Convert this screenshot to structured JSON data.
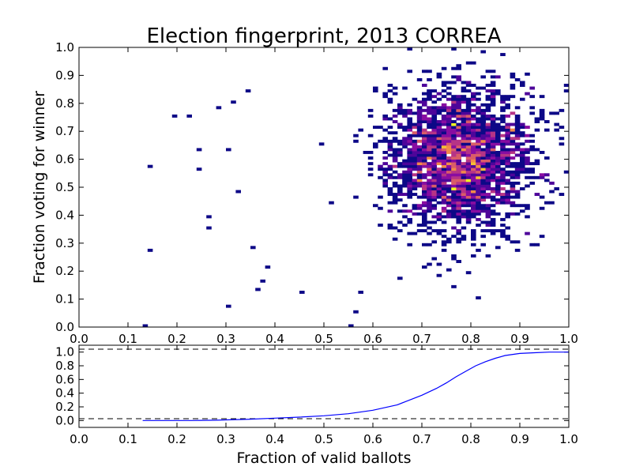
{
  "chart_data": [
    {
      "type": "heatmap",
      "title": "Election fingerprint, 2013 CORREA",
      "xlabel": "",
      "ylabel": "Fraction voting for winner",
      "xlim": [
        0.0,
        1.0
      ],
      "ylim": [
        0.0,
        1.0
      ],
      "x_ticks": [
        "0.0",
        "0.1",
        "0.2",
        "0.3",
        "0.4",
        "0.5",
        "0.6",
        "0.7",
        "0.8",
        "0.9",
        "1.0"
      ],
      "y_ticks": [
        "0.0",
        "0.1",
        "0.2",
        "0.3",
        "0.4",
        "0.5",
        "0.6",
        "0.7",
        "0.8",
        "0.9",
        "1.0"
      ],
      "bins": 100,
      "colormap": "plasma",
      "density_peak": {
        "x": 0.78,
        "y": 0.6
      },
      "density_spread": {
        "x": 0.075,
        "y": 0.13
      },
      "outlier_points": [
        {
          "x": 0.13,
          "y": 0.0
        },
        {
          "x": 0.14,
          "y": 0.58
        },
        {
          "x": 0.14,
          "y": 0.27
        },
        {
          "x": 0.19,
          "y": 0.75
        },
        {
          "x": 0.22,
          "y": 0.75
        },
        {
          "x": 0.24,
          "y": 0.63
        },
        {
          "x": 0.24,
          "y": 0.56
        },
        {
          "x": 0.26,
          "y": 0.35
        },
        {
          "x": 0.26,
          "y": 0.39
        },
        {
          "x": 0.28,
          "y": 0.78
        },
        {
          "x": 0.3,
          "y": 0.07
        },
        {
          "x": 0.3,
          "y": 0.63
        },
        {
          "x": 0.31,
          "y": 0.8
        },
        {
          "x": 0.32,
          "y": 0.48
        },
        {
          "x": 0.34,
          "y": 0.84
        },
        {
          "x": 0.35,
          "y": 0.29
        },
        {
          "x": 0.36,
          "y": 0.13
        },
        {
          "x": 0.37,
          "y": 0.16
        },
        {
          "x": 0.38,
          "y": 0.21
        },
        {
          "x": 0.45,
          "y": 0.12
        },
        {
          "x": 0.55,
          "y": 0.0
        },
        {
          "x": 0.56,
          "y": 0.05
        },
        {
          "x": 0.58,
          "y": 0.12
        },
        {
          "x": 0.67,
          "y": 0.99
        },
        {
          "x": 0.76,
          "y": 0.99
        },
        {
          "x": 0.99,
          "y": 0.86
        }
      ]
    },
    {
      "type": "line",
      "xlabel": "Fraction of valid ballots",
      "ylabel": "",
      "xlim": [
        0.0,
        1.0
      ],
      "ylim": [
        -0.1,
        1.1
      ],
      "x_ticks": [
        "0.0",
        "0.1",
        "0.2",
        "0.3",
        "0.4",
        "0.5",
        "0.6",
        "0.7",
        "0.8",
        "0.9",
        "1.0"
      ],
      "y_ticks": [
        "0.0",
        "0.2",
        "0.4",
        "0.6",
        "0.8",
        "1.0"
      ],
      "reference_lines": [
        0.0,
        1.0
      ],
      "series": [
        {
          "x": [
            0.13,
            0.23,
            0.28,
            0.3,
            0.35,
            0.4,
            0.45,
            0.5,
            0.55,
            0.6,
            0.65,
            0.7,
            0.73,
            0.75,
            0.77,
            0.79,
            0.81,
            0.83,
            0.85,
            0.87,
            0.9,
            0.93,
            0.96,
            1.0
          ],
          "values": [
            0.0,
            0.0,
            0.005,
            0.01,
            0.02,
            0.035,
            0.05,
            0.07,
            0.1,
            0.15,
            0.23,
            0.37,
            0.47,
            0.55,
            0.64,
            0.72,
            0.8,
            0.86,
            0.91,
            0.95,
            0.98,
            0.99,
            1.0,
            1.0
          ]
        }
      ]
    }
  ]
}
